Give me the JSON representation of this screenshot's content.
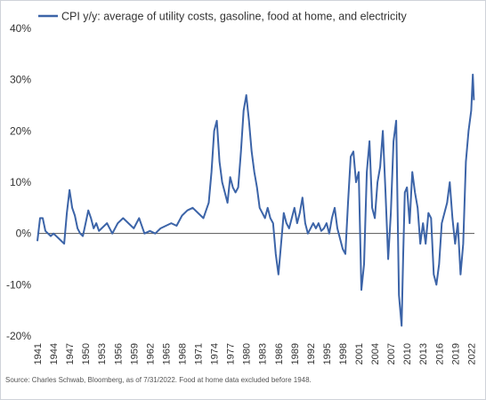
{
  "chart_data": {
    "type": "line",
    "title": "",
    "xlabel": "",
    "ylabel": "",
    "ylim": [
      -20,
      40
    ],
    "xlim": [
      1941,
      2022.6
    ],
    "y_ticks": [
      40,
      30,
      20,
      10,
      0,
      -10,
      -20
    ],
    "y_tick_labels": [
      "40%",
      "30%",
      "20%",
      "10%",
      "0%",
      "-10%",
      "-20%"
    ],
    "x_ticks": [
      1941,
      1944,
      1947,
      1950,
      1953,
      1956,
      1959,
      1962,
      1965,
      1968,
      1971,
      1974,
      1977,
      1980,
      1983,
      1986,
      1989,
      1992,
      1995,
      1998,
      2001,
      2004,
      2007,
      2010,
      2013,
      2016,
      2019,
      2022
    ],
    "x_tick_labels": [
      "1941",
      "1944",
      "1947",
      "1950",
      "1953",
      "1956",
      "1959",
      "1962",
      "1965",
      "1968",
      "1971",
      "1974",
      "1977",
      "1980",
      "1983",
      "1986",
      "1989",
      "1992",
      "1995",
      "1998",
      "2001",
      "2004",
      "2007",
      "2010",
      "2013",
      "2016",
      "2019",
      "2022"
    ],
    "legend": {
      "position": "top-left"
    },
    "grid": false,
    "zero_line": true,
    "series": [
      {
        "name": "CPI y/y: average of utility costs, gasoline, food at home, and electricity",
        "color": "#3c64a8",
        "x": [
          1941.0,
          1941.5,
          1942.0,
          1942.5,
          1943.0,
          1943.5,
          1944.0,
          1945.0,
          1946.0,
          1946.5,
          1947.0,
          1947.5,
          1948.0,
          1948.5,
          1949.0,
          1949.5,
          1950.0,
          1950.5,
          1951.0,
          1951.5,
          1952.0,
          1952.5,
          1953.0,
          1954.0,
          1955.0,
          1956.0,
          1957.0,
          1958.0,
          1959.0,
          1960.0,
          1961.0,
          1962.0,
          1963.0,
          1964.0,
          1965.0,
          1966.0,
          1967.0,
          1968.0,
          1969.0,
          1970.0,
          1971.0,
          1972.0,
          1973.0,
          1973.5,
          1974.0,
          1974.5,
          1975.0,
          1975.5,
          1976.0,
          1976.5,
          1977.0,
          1977.5,
          1978.0,
          1978.5,
          1979.0,
          1979.5,
          1980.0,
          1980.5,
          1981.0,
          1981.5,
          1982.0,
          1982.5,
          1983.0,
          1983.5,
          1984.0,
          1984.5,
          1985.0,
          1985.5,
          1986.0,
          1986.5,
          1987.0,
          1987.5,
          1988.0,
          1988.5,
          1989.0,
          1989.5,
          1990.0,
          1990.5,
          1991.0,
          1991.5,
          1992.0,
          1992.5,
          1993.0,
          1993.5,
          1994.0,
          1994.5,
          1995.0,
          1995.5,
          1996.0,
          1996.5,
          1997.0,
          1997.5,
          1998.0,
          1998.5,
          1999.0,
          1999.5,
          2000.0,
          2000.5,
          2001.0,
          2001.5,
          2002.0,
          2002.5,
          2003.0,
          2003.5,
          2004.0,
          2004.5,
          2005.0,
          2005.5,
          2006.0,
          2006.5,
          2007.0,
          2007.5,
          2008.0,
          2008.5,
          2009.0,
          2009.3,
          2009.6,
          2010.0,
          2010.5,
          2011.0,
          2011.5,
          2012.0,
          2012.5,
          2013.0,
          2013.5,
          2014.0,
          2014.5,
          2015.0,
          2015.5,
          2016.0,
          2016.5,
          2017.0,
          2017.5,
          2018.0,
          2018.5,
          2019.0,
          2019.5,
          2020.0,
          2020.5,
          2021.0,
          2021.5,
          2022.0,
          2022.3,
          2022.5
        ],
        "y": [
          -1.5,
          3.0,
          3.0,
          0.5,
          0.0,
          -0.5,
          0.0,
          -1.0,
          -2.0,
          4.0,
          8.5,
          5.0,
          3.5,
          1.0,
          0.0,
          -0.5,
          2.0,
          4.5,
          3.0,
          1.0,
          2.0,
          0.5,
          1.0,
          2.0,
          0.0,
          2.0,
          3.0,
          2.0,
          1.0,
          3.0,
          0.0,
          0.5,
          0.0,
          1.0,
          1.5,
          2.0,
          1.5,
          3.5,
          4.5,
          5.0,
          4.0,
          3.0,
          6.0,
          12.0,
          20.0,
          22.0,
          14.0,
          10.0,
          8.0,
          6.0,
          11.0,
          9.0,
          8.0,
          9.0,
          16.0,
          24.0,
          27.0,
          22.0,
          16.0,
          12.0,
          9.0,
          5.0,
          4.0,
          3.0,
          5.0,
          3.0,
          2.0,
          -4.0,
          -8.0,
          -2.0,
          4.0,
          2.0,
          1.0,
          3.0,
          5.0,
          2.0,
          4.0,
          7.0,
          2.0,
          0.0,
          1.0,
          2.0,
          1.0,
          2.0,
          0.5,
          1.0,
          2.0,
          0.0,
          3.0,
          5.0,
          1.0,
          -1.0,
          -3.0,
          -4.0,
          6.0,
          15.0,
          16.0,
          10.0,
          12.0,
          -11.0,
          -6.0,
          12.0,
          18.0,
          5.0,
          3.0,
          10.0,
          13.0,
          20.0,
          8.0,
          -5.0,
          4.0,
          18.0,
          22.0,
          -12.0,
          -18.0,
          -4.0,
          8.0,
          9.0,
          2.0,
          12.0,
          8.0,
          5.0,
          -2.0,
          2.0,
          -2.0,
          4.0,
          3.0,
          -8.0,
          -10.0,
          -6.0,
          2.0,
          4.0,
          6.0,
          10.0,
          3.0,
          -2.0,
          2.0,
          -8.0,
          -2.0,
          14.0,
          20.0,
          24.0,
          31.0,
          26.0
        ]
      }
    ]
  },
  "source_note": "Source: Charles Schwab, Bloomberg, as of 7/31/2022. Food at home data excluded before 1948."
}
